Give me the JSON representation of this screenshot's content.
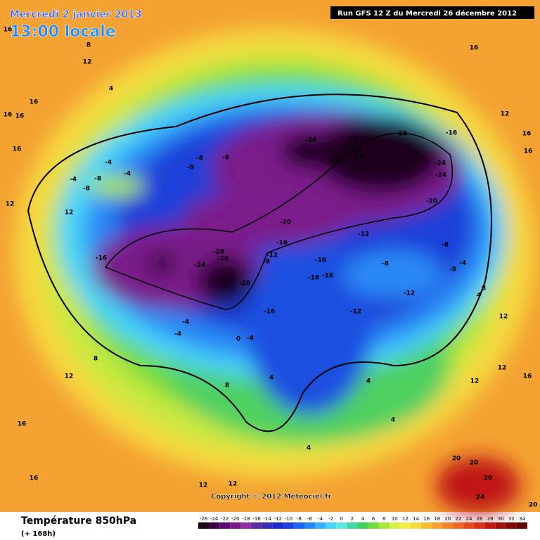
{
  "header": {
    "date": "Mercredi 2 janvier 2013",
    "time": "13:00 locale",
    "run": "Run GFS 12 Z du Mercredi 26 décembre 2012"
  },
  "copyright": "Copyright © 2012 Meteociel.fr",
  "footer": {
    "title": "Température 850hPa",
    "lead": "(+ 168h)"
  },
  "colorbar": {
    "ticks": [
      -26,
      -24,
      -22,
      -20,
      -18,
      -16,
      -14,
      -12,
      -10,
      -8,
      -6,
      -4,
      -2,
      0,
      2,
      4,
      6,
      8,
      10,
      12,
      14,
      16,
      18,
      20,
      22,
      24,
      26,
      28,
      30,
      32,
      34
    ],
    "colors": [
      "#1a001a",
      "#3a0040",
      "#5a0a6a",
      "#7a1a8a",
      "#8a30a0",
      "#5a2aa0",
      "#3a2ab8",
      "#1e28c8",
      "#1a40e0",
      "#1e62ee",
      "#2a88f6",
      "#3ab0fa",
      "#48d4f8",
      "#60e8e0",
      "#3ed8a0",
      "#44d060",
      "#70dc40",
      "#a8e63a",
      "#d8ee40",
      "#f2ee48",
      "#f6d840",
      "#f6bc36",
      "#f4a030",
      "#f08428",
      "#ec6824",
      "#e44a20",
      "#d8301c",
      "#c01818",
      "#a01010",
      "#800808",
      "#600404"
    ]
  },
  "map_labels": [
    "16",
    "12",
    "8",
    "4",
    "16",
    "16",
    "16",
    "16",
    "12",
    "12",
    "-16",
    "-4",
    "-8",
    "-4",
    "-4",
    "-8",
    "-8",
    "-8",
    "-8",
    "-28",
    "-28",
    "-24",
    "-28",
    "-16",
    "-20",
    "-16",
    "-12",
    "-8",
    "-16",
    "-16",
    "-16",
    "-12",
    "-12",
    "-12",
    "-8",
    "-8",
    "-8",
    "-4",
    "-20",
    "-24",
    "-24",
    "-16",
    "-28",
    "-24",
    "-24",
    "-28",
    "-28",
    "-24",
    "-4",
    "-4",
    "0",
    "-4",
    "4",
    "4",
    "4",
    "4",
    "8",
    "8",
    "12",
    "16",
    "16",
    "12",
    "12",
    "12",
    "12",
    "16",
    "20",
    "20",
    "20",
    "24",
    "20",
    "16",
    "12",
    "16",
    "16",
    "12",
    "8",
    "4"
  ]
}
